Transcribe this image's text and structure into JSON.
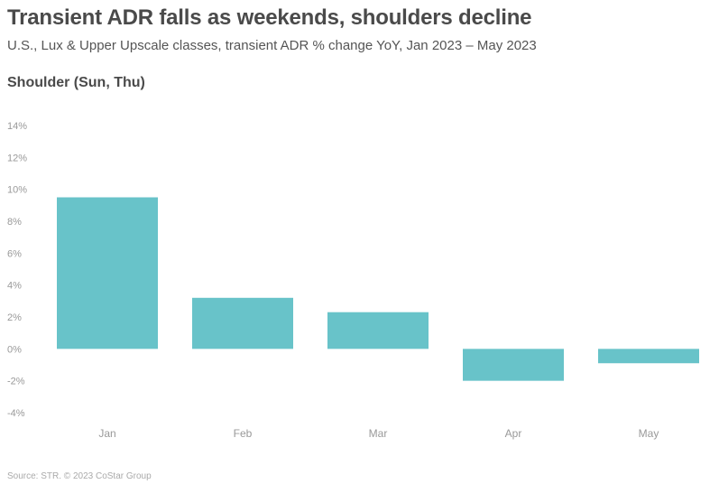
{
  "header": {
    "title": "Transient ADR falls as weekends, shoulders decline",
    "subtitle": "U.S., Lux & Upper Upscale classes, transient ADR % change YoY, Jan 2023 – May 2023"
  },
  "panel": {
    "title": "Shoulder (Sun, Thu)"
  },
  "footer": {
    "source": "Source: STR. © 2023 CoStar Group"
  },
  "chart_data": {
    "type": "bar",
    "title": "Shoulder (Sun, Thu)",
    "categories": [
      "Jan",
      "Feb",
      "Mar",
      "Apr",
      "May"
    ],
    "values": [
      9.5,
      3.2,
      2.3,
      -2.0,
      -0.9
    ],
    "ylim": [
      -4,
      14
    ],
    "yticks": [
      14,
      12,
      10,
      8,
      6,
      4,
      2,
      0,
      -2,
      -4
    ],
    "ytick_labels": [
      "14%",
      "12%",
      "10%",
      "8%",
      "6%",
      "4%",
      "2%",
      "0%",
      "-2%",
      "-4%"
    ],
    "xlabel": "",
    "ylabel": "",
    "grid": false,
    "bar_color": "#68c3c9"
  }
}
